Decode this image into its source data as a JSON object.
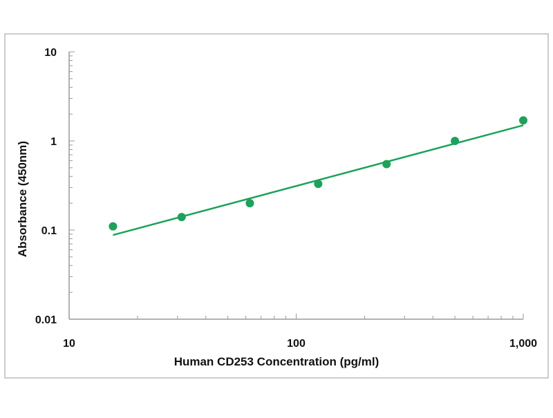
{
  "chart_data": {
    "type": "scatter",
    "title": "",
    "xlabel": "Human CD253 Concentration (pg/ml)",
    "ylabel": "Absorbance (450nm)",
    "x_scale": "log",
    "y_scale": "log",
    "xlim": [
      10,
      1000
    ],
    "ylim": [
      0.01,
      10
    ],
    "x_ticks": [
      {
        "value": 10,
        "label": "10"
      },
      {
        "value": 100,
        "label": "100"
      },
      {
        "value": 1000,
        "label": "1,000"
      }
    ],
    "y_ticks": [
      {
        "value": 10,
        "label": "10"
      },
      {
        "value": 1,
        "label": "1"
      },
      {
        "value": 0.1,
        "label": "0.1"
      },
      {
        "value": 0.01,
        "label": "0.01"
      }
    ],
    "grid": false,
    "legend": "none",
    "series": [
      {
        "x": [
          15.6,
          31.3,
          62.5,
          125,
          250,
          500,
          1000
        ],
        "y": [
          0.11,
          0.14,
          0.2,
          0.33,
          0.55,
          1.0,
          1.7
        ]
      }
    ],
    "fit_line": {
      "x": [
        15.6,
        1000
      ],
      "y": [
        0.088,
        1.5
      ]
    },
    "colors": {
      "series": "#1aa35a",
      "axis": "#999999",
      "frame": "#bbbbbb"
    }
  }
}
